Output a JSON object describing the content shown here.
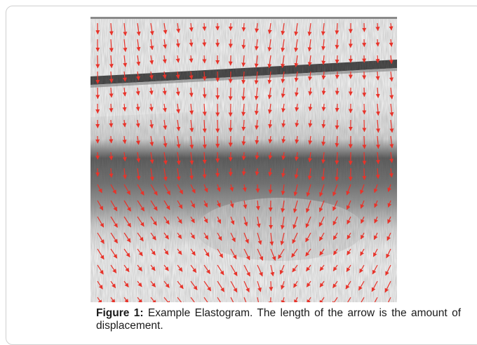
{
  "figure": {
    "label": "Figure 1:",
    "caption": "Example Elastogram. The length of the arrow is the amount of displacement.",
    "image_alt": "Elastogram ultrasound image with red displacement arrows",
    "colors": {
      "arrow": "#e8332a",
      "tissue_dark": "#2b2b2b",
      "background": "#f1f1f1"
    }
  }
}
